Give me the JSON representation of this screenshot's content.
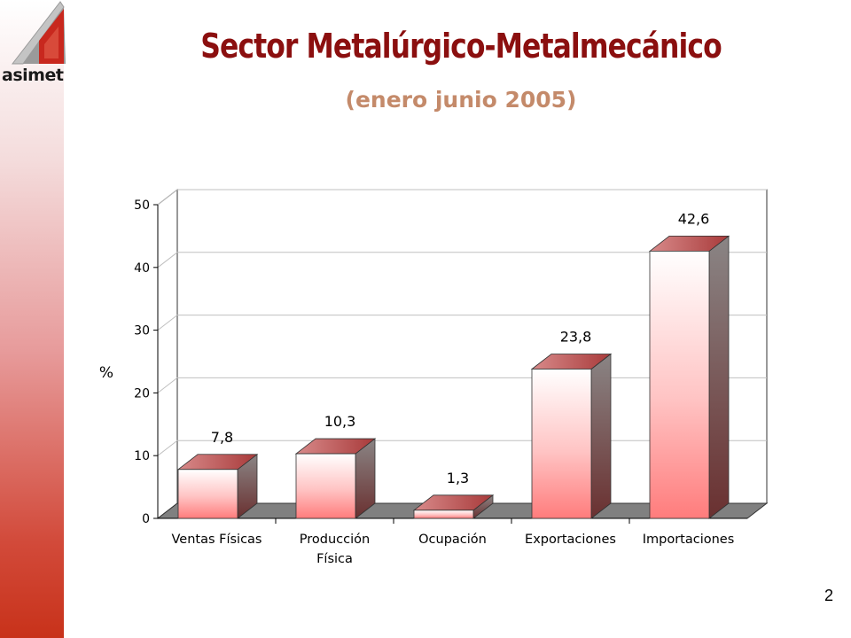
{
  "slide": {
    "title": "Sector Metalúrgico-Metalmecánico",
    "subtitle": "(enero junio 2005)",
    "page_number": "2",
    "logo_text": "asimet"
  },
  "colors": {
    "title": "#8b0f0f",
    "subtitle": "#c48a6a",
    "bar_top": "#b84a4a",
    "bar_side": "#6a3b3b",
    "floor": "#7a7a7a"
  },
  "chart_data": {
    "type": "bar",
    "categories": [
      "Ventas Físicas",
      "Producción Física",
      "Ocupación",
      "Exportaciones",
      "Importaciones"
    ],
    "category_lines": [
      [
        "Ventas Físicas"
      ],
      [
        "Producción",
        "Física"
      ],
      [
        "Ocupación"
      ],
      [
        "Exportaciones"
      ],
      [
        "Importaciones"
      ]
    ],
    "values": [
      7.8,
      10.3,
      1.3,
      23.8,
      42.6
    ],
    "data_labels": [
      "7,8",
      "10,3",
      "1,3",
      "23,8",
      "42,6"
    ],
    "ylabel": "%",
    "ylim": [
      0,
      50
    ],
    "yticks": [
      0,
      10,
      20,
      30,
      40,
      50
    ],
    "grid": true,
    "style": "3d-bar"
  }
}
